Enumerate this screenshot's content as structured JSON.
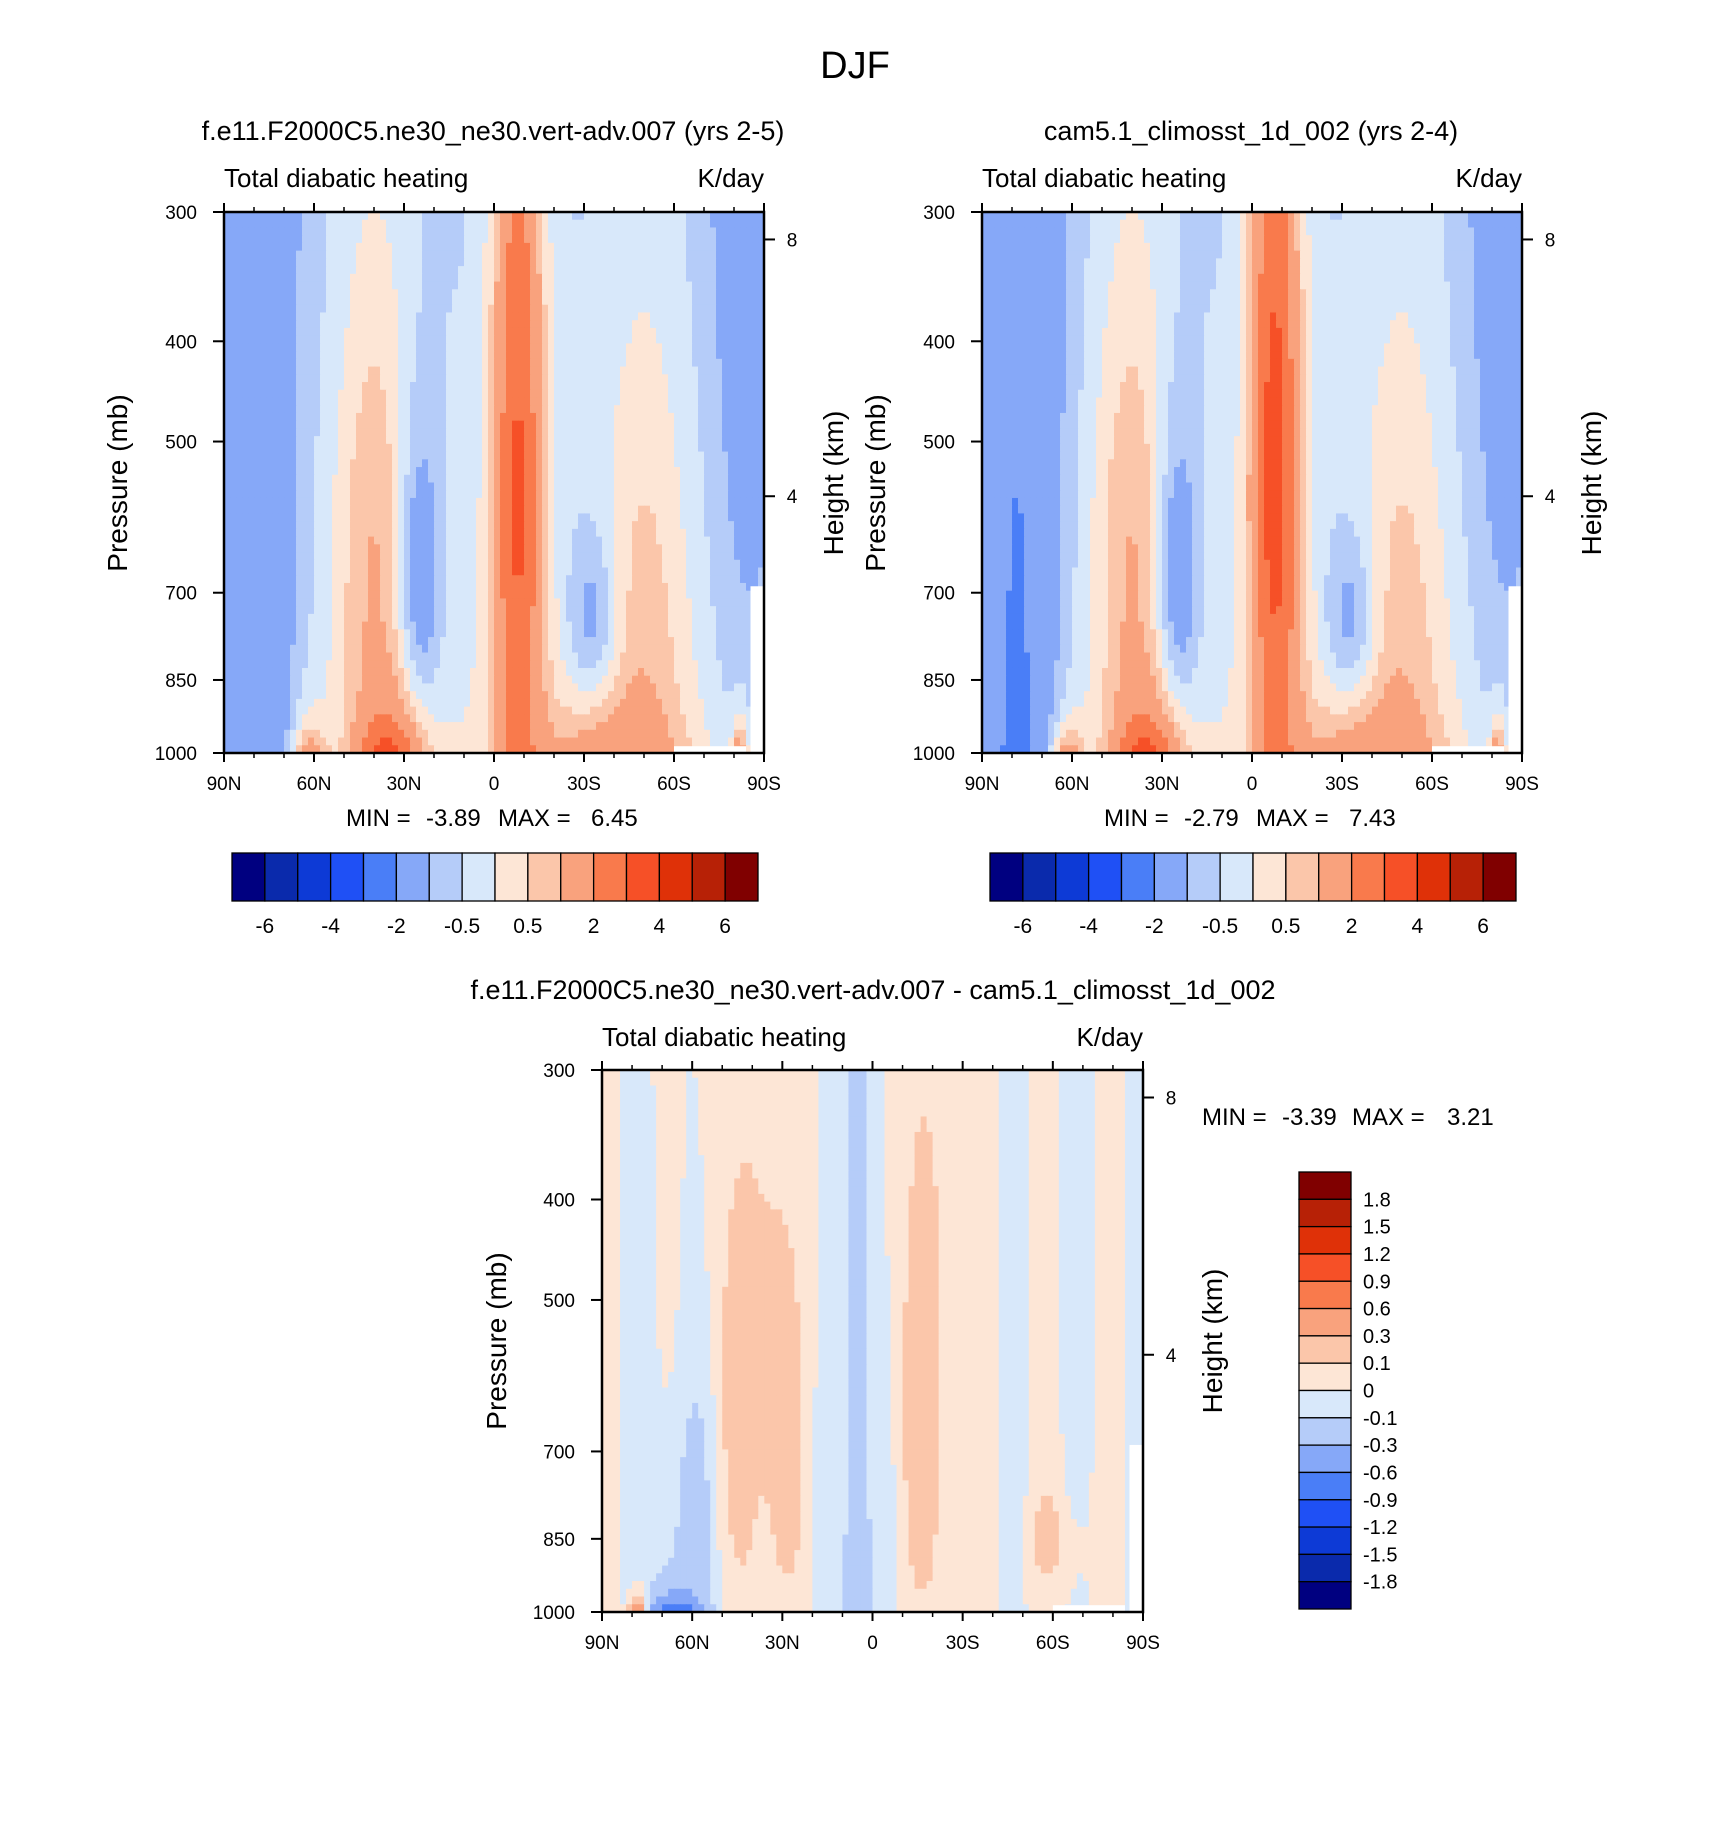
{
  "figure_title": "DJF",
  "colors": {
    "model_levels": [
      "#000080",
      "#0a2aac",
      "#0d3ad6",
      "#1f50f5",
      "#4a7ef7",
      "#86a8f8",
      "#b5ccf9",
      "#d8e8fa",
      "#fde6d6",
      "#fbc6aa",
      "#f9a27d",
      "#f97a4c",
      "#f65027",
      "#df3108",
      "#b72106",
      "#800000"
    ],
    "diff_levels": [
      "#000080",
      "#0a2aac",
      "#0d3ad6",
      "#1f50f5",
      "#4a7ef7",
      "#86a8f8",
      "#b5ccf9",
      "#d8e8fa",
      "#fde6d6",
      "#fbc6aa",
      "#f9a27d",
      "#f97a4c",
      "#f65027",
      "#df3108",
      "#b72106",
      "#800000"
    ]
  },
  "chart_data": [
    {
      "type": "heatmap",
      "title": "f.e11.F2000C5.ne30_ne30.vert-adv.007 (yrs 2-5)",
      "left_subtitle": "Total diabatic heating",
      "right_subtitle": "K/day",
      "ylabel": "Pressure (mb)",
      "ylabel_right": "Height (km)",
      "x_ticks": [
        "90N",
        "60N",
        "30N",
        "0",
        "30S",
        "60S",
        "90S"
      ],
      "x_tick_values": [
        90,
        60,
        30,
        0,
        -30,
        -60,
        -90
      ],
      "y_ticks": [
        "300",
        "400",
        "500",
        "700",
        "850",
        "1000"
      ],
      "y_tick_values": [
        300,
        400,
        500,
        700,
        850,
        1000
      ],
      "height_ticks": [
        "8",
        "4"
      ],
      "height_tick_values": [
        8,
        4
      ],
      "xlim": [
        90,
        -90
      ],
      "ylim": [
        1000,
        300
      ],
      "min_label": "MIN =",
      "min_value": "-3.89",
      "max_label": "MAX =",
      "max_value": "6.45",
      "colorbar_ticks": [
        "-6",
        "-4",
        "-2",
        "-0.5",
        "0.5",
        "2",
        "4",
        "6"
      ],
      "field_min": -3.89,
      "field_max": 6.45
    },
    {
      "type": "heatmap",
      "title": "cam5.1_climosst_1d_002 (yrs 2-4)",
      "left_subtitle": "Total diabatic heating",
      "right_subtitle": "K/day",
      "ylabel": "Pressure (mb)",
      "ylabel_right": "Height (km)",
      "x_ticks": [
        "90N",
        "60N",
        "30N",
        "0",
        "30S",
        "60S",
        "90S"
      ],
      "x_tick_values": [
        90,
        60,
        30,
        0,
        -30,
        -60,
        -90
      ],
      "y_ticks": [
        "300",
        "400",
        "500",
        "700",
        "850",
        "1000"
      ],
      "y_tick_values": [
        300,
        400,
        500,
        700,
        850,
        1000
      ],
      "height_ticks": [
        "8",
        "4"
      ],
      "height_tick_values": [
        8,
        4
      ],
      "xlim": [
        90,
        -90
      ],
      "ylim": [
        1000,
        300
      ],
      "min_label": "MIN =",
      "min_value": "-2.79",
      "max_label": "MAX =",
      "max_value": "7.43",
      "colorbar_ticks": [
        "-6",
        "-4",
        "-2",
        "-0.5",
        "0.5",
        "2",
        "4",
        "6"
      ],
      "field_min": -2.79,
      "field_max": 7.43
    },
    {
      "type": "heatmap",
      "title": "f.e11.F2000C5.ne30_ne30.vert-adv.007 - cam5.1_climosst_1d_002",
      "left_subtitle": "Total diabatic heating",
      "right_subtitle": "K/day",
      "ylabel": "Pressure (mb)",
      "ylabel_right": "Height (km)",
      "x_ticks": [
        "90N",
        "60N",
        "30N",
        "0",
        "30S",
        "60S",
        "90S"
      ],
      "x_tick_values": [
        90,
        60,
        30,
        0,
        -30,
        -60,
        -90
      ],
      "y_ticks": [
        "300",
        "400",
        "500",
        "700",
        "850",
        "1000"
      ],
      "y_tick_values": [
        300,
        400,
        500,
        700,
        850,
        1000
      ],
      "height_ticks": [
        "8",
        "4"
      ],
      "height_tick_values": [
        8,
        4
      ],
      "xlim": [
        90,
        -90
      ],
      "ylim": [
        1000,
        300
      ],
      "min_label": "MIN =",
      "min_value": "-3.39",
      "max_label": "MAX =",
      "max_value": "3.21",
      "colorbar_ticks": [
        "1.8",
        "1.5",
        "1.2",
        "0.9",
        "0.6",
        "0.3",
        "0.1",
        "0",
        "-0.1",
        "-0.3",
        "-0.6",
        "-0.9",
        "-1.2",
        "-1.5",
        "-1.8"
      ],
      "field_min": -3.39,
      "field_max": 3.21
    }
  ]
}
